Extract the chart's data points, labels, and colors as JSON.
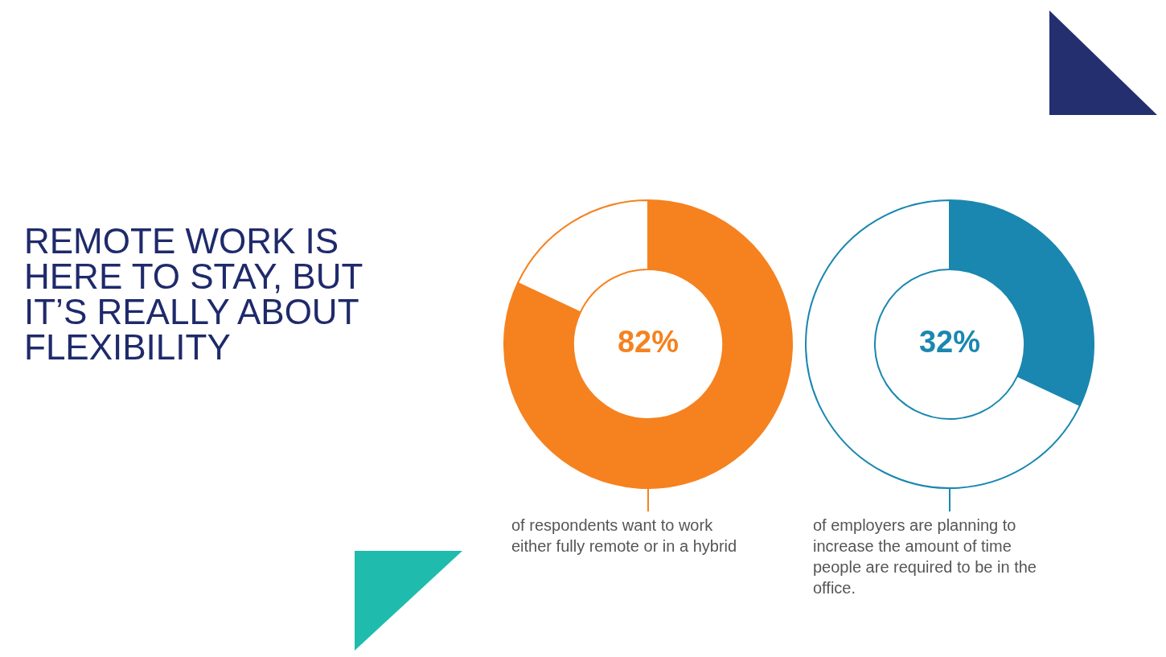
{
  "chart_data": [
    {
      "type": "other",
      "title": "REMOTE WORK IS HERE TO STAY, BUT IT’S REALLY ABOUT FLEXIBILITY"
    },
    {
      "type": "donut",
      "categories": [
        null,
        null
      ],
      "values": [
        82,
        18
      ],
      "colors": [
        "#f5821f",
        "#ffffff"
      ],
      "value_labels": [
        "82%",
        null
      ],
      "annotations": [
        "of respondents want to work either fully remote or in a hybrid"
      ]
    },
    {
      "type": "donut",
      "categories": [
        null,
        null
      ],
      "values": [
        32,
        68
      ],
      "colors": [
        "#1a87b0",
        "#ffffff"
      ],
      "value_labels": [
        "32%",
        null
      ],
      "annotations": [
        "of employers are planning to increase the amount of time people are required to be in the office."
      ]
    }
  ]
}
